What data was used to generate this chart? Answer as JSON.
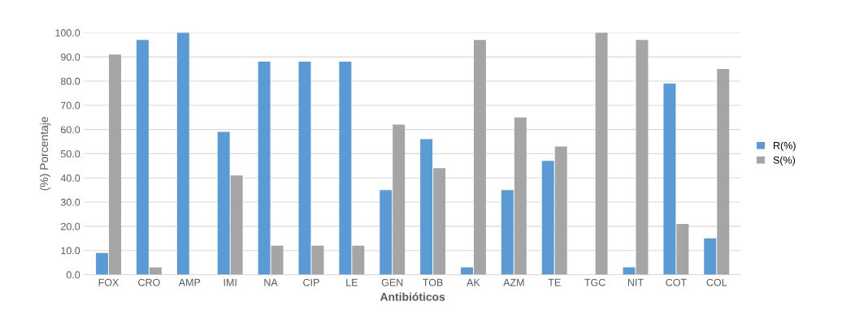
{
  "chart_data": {
    "type": "bar",
    "xlabel": "Antibióticos",
    "ylabel": "(%) Porcentaje",
    "categories": [
      "FOX",
      "CRO",
      "AMP",
      "IMI",
      "NA",
      "CIP",
      "LE",
      "GEN",
      "TOB",
      "AK",
      "AZM",
      "TE",
      "TGC",
      "NIT",
      "COT",
      "COL"
    ],
    "series": [
      {
        "name": "R(%)",
        "color": "#5b9bd5",
        "values": [
          9,
          97,
          100,
          59,
          88,
          88,
          88,
          35,
          56,
          3,
          35,
          47,
          0,
          3,
          79,
          15
        ]
      },
      {
        "name": "S(%)",
        "color": "#a5a5a5",
        "values": [
          91,
          3,
          0,
          41,
          12,
          12,
          12,
          62,
          44,
          97,
          65,
          53,
          100,
          97,
          21,
          85
        ]
      }
    ],
    "ylim": [
      0,
      100
    ],
    "yticks": [
      {
        "value": 0,
        "label": "0.0"
      },
      {
        "value": 10,
        "label": "10.0"
      },
      {
        "value": 20,
        "label": "20.0"
      },
      {
        "value": 30,
        "label": "30.0"
      },
      {
        "value": 40,
        "label": "40.0"
      },
      {
        "value": 50,
        "label": "50.0"
      },
      {
        "value": 60,
        "label": "60.0"
      },
      {
        "value": 70,
        "label": "70.0"
      },
      {
        "value": 80,
        "label": "80.0"
      },
      {
        "value": 90,
        "label": "90.0"
      },
      {
        "value": 100,
        "label": "100.0"
      }
    ],
    "grid": "y",
    "legend": "right"
  }
}
